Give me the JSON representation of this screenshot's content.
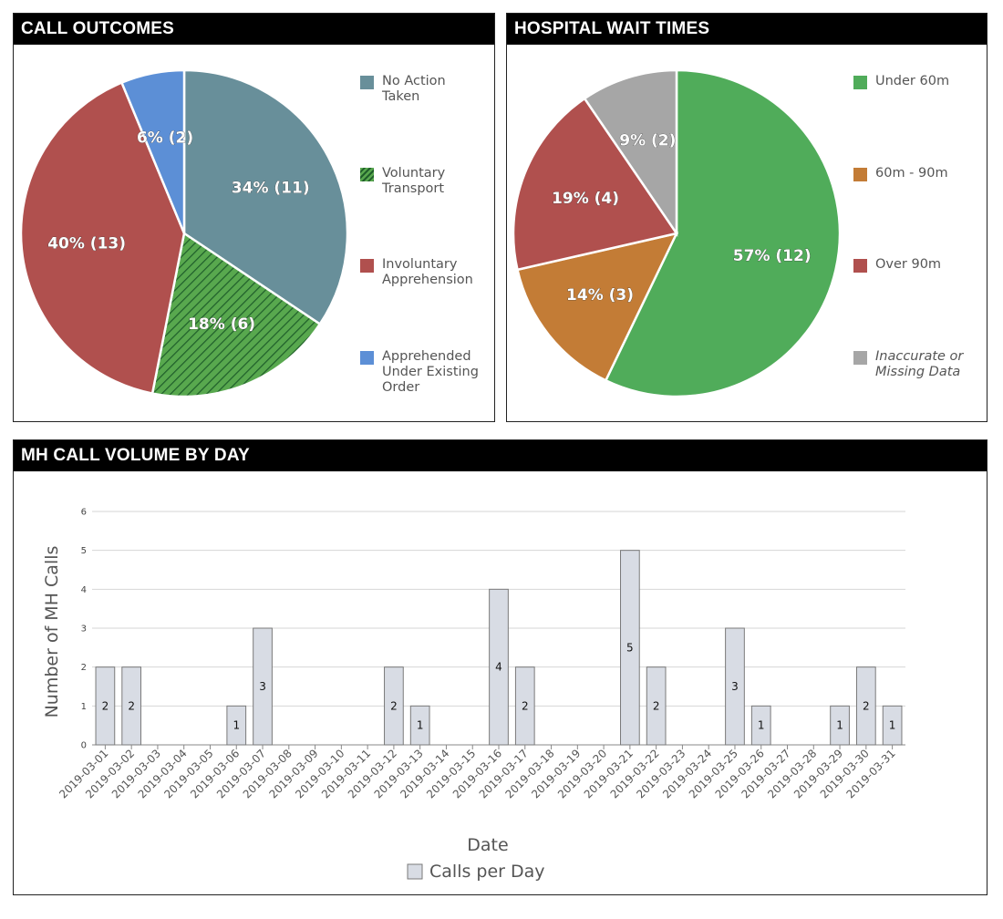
{
  "panels": {
    "call_outcomes": {
      "title": "CALL OUTCOMES"
    },
    "hospital_wait_times": {
      "title": "HOSPITAL WAIT TIMES"
    },
    "call_volume": {
      "title": "MH CALL VOLUME BY DAY"
    }
  },
  "colors": {
    "no_action": "#688f9a",
    "voluntary": "#4e9a45",
    "involuntary": "#b0504e",
    "existing_order": "#5c8fd6",
    "under_60": "#50ac5a",
    "m60_90": "#c37c36",
    "over_90": "#b0504e",
    "missing": "#a6a6a6",
    "bar_fill": "#d8dce4",
    "bar_stroke": "#7a7a7a"
  },
  "chart_data": [
    {
      "type": "pie",
      "title": "CALL OUTCOMES",
      "slices": [
        {
          "name": "No Action Taken",
          "legend": "No Action\nTaken",
          "value": 11,
          "percent": 34,
          "label": "34% (11)",
          "color": "#688f9a",
          "pattern": ""
        },
        {
          "name": "Voluntary Transport",
          "legend": "Voluntary\nTransport",
          "value": 6,
          "percent": 18,
          "label": "18% (6)",
          "color": "#4e9a45",
          "pattern": "diagonal-hatch"
        },
        {
          "name": "Involuntary Apprehension",
          "legend": "Involuntary\nApprehension",
          "value": 13,
          "percent": 40,
          "label": "40% (13)",
          "color": "#b0504e",
          "pattern": ""
        },
        {
          "name": "Apprehended Under Existing Order",
          "legend": "Apprehended\nUnder Existing\nOrder",
          "value": 2,
          "percent": 6,
          "label": "6% (2)",
          "color": "#5c8fd6",
          "pattern": ""
        }
      ],
      "legend_position": "right"
    },
    {
      "type": "pie",
      "title": "HOSPITAL WAIT TIMES",
      "slices": [
        {
          "name": "Under 60m",
          "legend": "Under 60m",
          "value": 12,
          "percent": 57,
          "label": "57% (12)",
          "color": "#50ac5a",
          "italic": false
        },
        {
          "name": "60m - 90m",
          "legend": "60m - 90m",
          "value": 3,
          "percent": 14,
          "label": "14% (3)",
          "color": "#c37c36",
          "italic": false
        },
        {
          "name": "Over 90m",
          "legend": "Over 90m",
          "value": 4,
          "percent": 19,
          "label": "19% (4)",
          "color": "#b0504e",
          "italic": false
        },
        {
          "name": "Inaccurate or Missing Data",
          "legend": "Inaccurate or\nMissing Data",
          "value": 2,
          "percent": 9,
          "label": "9% (2)",
          "color": "#a6a6a6",
          "italic": true
        }
      ],
      "legend_position": "right"
    },
    {
      "type": "bar",
      "title": "MH CALL VOLUME BY DAY",
      "xlabel": "Date",
      "ylabel": "Number of MH Calls",
      "ylim": [
        0,
        6
      ],
      "yticks": [
        0,
        1,
        2,
        3,
        4,
        5,
        6
      ],
      "grid": true,
      "legend_position": "bottom",
      "categories": [
        "2019-03-01",
        "2019-03-02",
        "2019-03-03",
        "2019-03-04",
        "2019-03-05",
        "2019-03-06",
        "2019-03-07",
        "2019-03-08",
        "2019-03-09",
        "2019-03-10",
        "2019-03-11",
        "2019-03-12",
        "2019-03-13",
        "2019-03-14",
        "2019-03-15",
        "2019-03-16",
        "2019-03-17",
        "2019-03-18",
        "2019-03-19",
        "2019-03-20",
        "2019-03-21",
        "2019-03-22",
        "2019-03-23",
        "2019-03-24",
        "2019-03-25",
        "2019-03-26",
        "2019-03-27",
        "2019-03-28",
        "2019-03-29",
        "2019-03-30",
        "2019-03-31"
      ],
      "series": [
        {
          "name": "Calls per Day",
          "values": [
            2,
            2,
            0,
            0,
            0,
            1,
            3,
            0,
            0,
            0,
            0,
            2,
            1,
            0,
            0,
            4,
            2,
            0,
            0,
            0,
            5,
            2,
            0,
            0,
            3,
            1,
            0,
            0,
            1,
            2,
            1
          ]
        }
      ]
    }
  ]
}
